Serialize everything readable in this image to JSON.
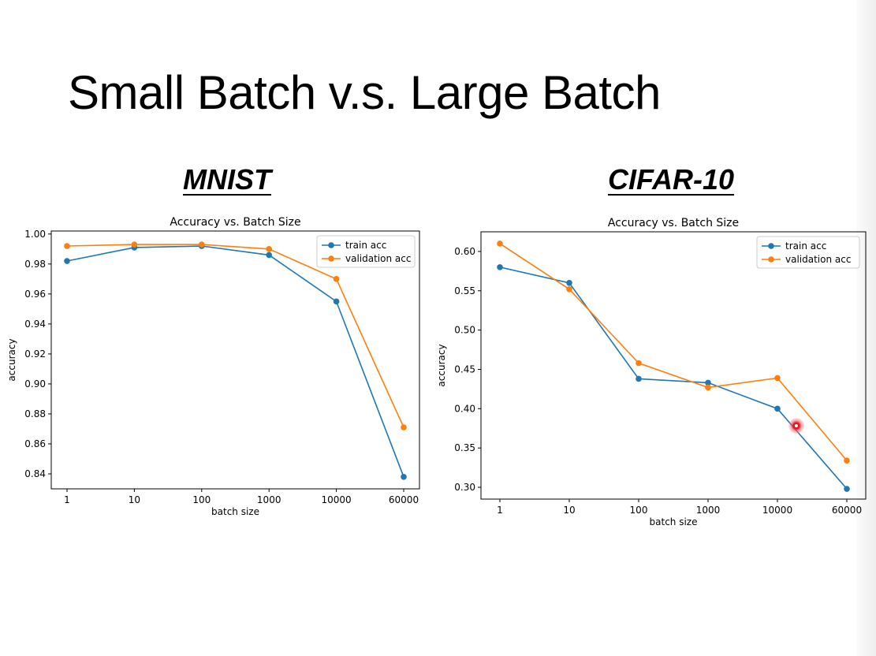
{
  "slide": {
    "title": "Small Batch v.s. Large Batch"
  },
  "panels": [
    {
      "heading": "MNIST"
    },
    {
      "heading": "CIFAR-10"
    }
  ],
  "colors": {
    "train": "#1f77b4",
    "validation": "#ff7f0e"
  },
  "chart_data": [
    {
      "type": "line",
      "title": "Accuracy vs. Batch Size",
      "xlabel": "batch size",
      "ylabel": "accuracy",
      "categories": [
        "1",
        "10",
        "100",
        "1000",
        "10000",
        "60000"
      ],
      "ylim": [
        0.83,
        1.002
      ],
      "yticks": [
        0.84,
        0.86,
        0.88,
        0.9,
        0.92,
        0.94,
        0.96,
        0.98,
        1.0
      ],
      "legend": "top-right",
      "grid": false,
      "series": [
        {
          "name": "train acc",
          "color": "#1f77b4",
          "values": [
            0.982,
            0.991,
            0.992,
            0.986,
            0.955,
            0.838
          ]
        },
        {
          "name": "validation acc",
          "color": "#ff7f0e",
          "values": [
            0.992,
            0.993,
            0.993,
            0.99,
            0.97,
            0.871
          ]
        }
      ]
    },
    {
      "type": "line",
      "title": "Accuracy vs. Batch Size",
      "xlabel": "batch size",
      "ylabel": "accuracy",
      "categories": [
        "1",
        "10",
        "100",
        "1000",
        "10000",
        "60000"
      ],
      "ylim": [
        0.285,
        0.625
      ],
      "yticks": [
        0.3,
        0.35,
        0.4,
        0.45,
        0.5,
        0.55,
        0.6
      ],
      "legend": "top-right",
      "grid": false,
      "series": [
        {
          "name": "train acc",
          "color": "#1f77b4",
          "values": [
            0.58,
            0.56,
            0.438,
            0.433,
            0.4,
            0.298
          ]
        },
        {
          "name": "validation acc",
          "color": "#ff7f0e",
          "values": [
            0.61,
            0.552,
            0.458,
            0.427,
            0.439,
            0.334
          ]
        }
      ]
    }
  ]
}
